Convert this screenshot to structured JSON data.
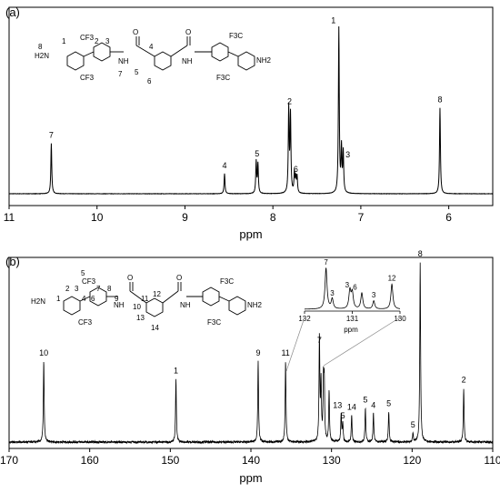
{
  "chart_data": [
    {
      "panel_label": "(a)",
      "type": "line",
      "subtype": "nmr-1h-spectrum",
      "xlabel": "ppm",
      "xlim": [
        11,
        5.5
      ],
      "x_reversed": true,
      "x_ticks": [
        11,
        10,
        9,
        8,
        7,
        6
      ],
      "peaks": [
        {
          "label": "7",
          "x": 10.52,
          "height": 0.3
        },
        {
          "label": "4",
          "x": 8.55,
          "height": 0.12
        },
        {
          "label": "5",
          "x": 8.18,
          "height": 0.19,
          "doublet_gap": 0.02
        },
        {
          "label": "2",
          "x": 7.81,
          "height": 0.5,
          "doublet_gap": 0.02
        },
        {
          "label": "6",
          "x": 7.74,
          "height": 0.12,
          "multiplet": true
        },
        {
          "label": "1",
          "x": 7.25,
          "height": 0.98
        },
        {
          "label": "3",
          "x": 7.21,
          "height": 0.26,
          "doublet_gap": 0.02
        },
        {
          "label": "8",
          "x": 6.1,
          "height": 0.51
        }
      ],
      "structure_labels": {
        "left_groups": [
          "H2N",
          "CF3",
          "CF3"
        ],
        "right_groups": [
          "F3C",
          "F3C",
          "NH2"
        ],
        "linkers": [
          "NH",
          "NH",
          "O",
          "O"
        ],
        "position_numbers": [
          "8",
          "1",
          "2",
          "3",
          "7",
          "4",
          "5",
          "6"
        ]
      }
    },
    {
      "panel_label": "(b)",
      "type": "line",
      "subtype": "nmr-13c-spectrum",
      "xlabel": "ppm",
      "xlim": [
        170,
        110
      ],
      "x_reversed": true,
      "x_ticks": [
        170,
        160,
        150,
        140,
        130,
        120,
        110
      ],
      "peaks": [
        {
          "label": "10",
          "x": 165.7,
          "height": 0.45
        },
        {
          "label": "1",
          "x": 149.3,
          "height": 0.35
        },
        {
          "label": "9",
          "x": 139.1,
          "height": 0.45
        },
        {
          "label": "11",
          "x": 135.7,
          "height": 0.45
        },
        {
          "label": "7",
          "x": 131.5,
          "height": 0.58
        },
        {
          "label": "3",
          "x": 131.3,
          "height": 0.32
        },
        {
          "label": "3",
          "x": 131.0,
          "height": 0.32
        },
        {
          "label": "6",
          "x": 130.9,
          "height": 0.3
        },
        {
          "label": "",
          "x": 130.3,
          "height": 0.28
        },
        {
          "label": "13",
          "x": 128.8,
          "height": 0.16
        },
        {
          "label": "5",
          "x": 128.6,
          "height": 0.1
        },
        {
          "label": "14",
          "x": 127.5,
          "height": 0.15
        },
        {
          "label": "5",
          "x": 125.8,
          "height": 0.19
        },
        {
          "label": "4",
          "x": 124.8,
          "height": 0.16
        },
        {
          "label": "5",
          "x": 122.9,
          "height": 0.17
        },
        {
          "label": "5",
          "x": 119.9,
          "height": 0.05
        },
        {
          "label": "8",
          "x": 119.0,
          "height": 1.0
        },
        {
          "label": "2",
          "x": 113.6,
          "height": 0.3
        }
      ],
      "inset": {
        "xlabel": "ppm",
        "xlim": [
          132,
          130
        ],
        "x_ticks": [
          132,
          131,
          130
        ],
        "peaks": [
          {
            "label": "7",
            "x": 131.55,
            "height": 0.9
          },
          {
            "label": "3",
            "x": 131.42,
            "height": 0.22
          },
          {
            "label": "3",
            "x": 131.05,
            "height": 0.4
          },
          {
            "label": "6",
            "x": 131.0,
            "height": 0.35
          },
          {
            "label": "",
            "x": 130.8,
            "height": 0.35
          },
          {
            "label": "3",
            "x": 130.55,
            "height": 0.18
          },
          {
            "label": "12",
            "x": 130.17,
            "height": 0.55
          }
        ]
      },
      "structure_labels": {
        "left_groups": [
          "H2N",
          "CF3",
          "CF3"
        ],
        "right_groups": [
          "F3C",
          "F3C",
          "NH2"
        ],
        "linkers": [
          "NH",
          "NH",
          "O",
          "O"
        ],
        "position_numbers": [
          "5",
          "2",
          "3",
          "7",
          "8",
          "1",
          "4",
          "6",
          "9",
          "11",
          "12",
          "10",
          "13",
          "14"
        ]
      }
    }
  ]
}
